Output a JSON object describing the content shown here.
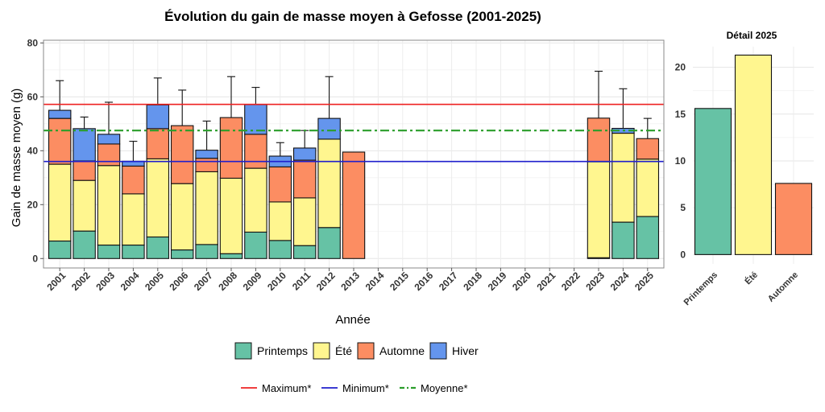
{
  "colors": {
    "Printemps": "#66c2a5",
    "Été": "#fff68f",
    "Automne": "#fc8d62",
    "Hiver": "#6495ed",
    "maximum": "#ee2222",
    "minimum": "#1f1fcc",
    "moyenne": "#2a9d2a"
  },
  "chart_data": [
    {
      "type": "bar",
      "stacked": true,
      "title": "Évolution du gain de masse moyen à Gefosse (2001-2025)",
      "xlabel": "Année",
      "ylabel": "Gain de masse moyen (g)",
      "ylim": [
        -3.5,
        81
      ],
      "yticks": [
        0,
        20,
        40,
        60,
        80
      ],
      "grid": true,
      "categories": [
        "2001",
        "2002",
        "2003",
        "2004",
        "2005",
        "2006",
        "2007",
        "2008",
        "2009",
        "2010",
        "2011",
        "2012",
        "2013",
        "2014",
        "2015",
        "2016",
        "2017",
        "2018",
        "2019",
        "2020",
        "2021",
        "2022",
        "2023",
        "2024",
        "2025"
      ],
      "series": [
        {
          "name": "Printemps",
          "values": [
            6.5,
            10.2,
            5,
            5,
            8,
            3.2,
            5.2,
            1.8,
            9.8,
            6.7,
            4.8,
            11.5,
            0,
            0,
            0,
            0,
            0,
            0,
            0,
            0,
            0,
            0,
            0.3,
            13.5,
            15.6
          ]
        },
        {
          "name": "Été",
          "values": [
            28.5,
            18.8,
            29.5,
            19,
            29,
            24.6,
            27,
            28,
            23.7,
            14.3,
            17.7,
            32.8,
            0,
            0,
            0,
            0,
            0,
            0,
            0,
            0,
            0,
            0,
            35.6,
            33,
            21.3
          ]
        },
        {
          "name": "Automne",
          "values": [
            17,
            7.2,
            8,
            10.3,
            11.2,
            21.5,
            5,
            22.5,
            12.6,
            13,
            14,
            0,
            39.5,
            0,
            0,
            0,
            0,
            0,
            0,
            0,
            0,
            0,
            16.2,
            0,
            7.6
          ]
        },
        {
          "name": "Hiver",
          "values": [
            3,
            12,
            3.6,
            1.8,
            8.8,
            0,
            3,
            0,
            11,
            4,
            4.5,
            7.7,
            0,
            0,
            0,
            0,
            0,
            0,
            0,
            0,
            0,
            0,
            0,
            1.8,
            0
          ]
        }
      ],
      "error_bar_top": [
        66,
        52.5,
        58,
        43.5,
        67,
        62.5,
        51,
        67.5,
        63.5,
        43,
        47.5,
        67.5,
        null,
        null,
        null,
        null,
        null,
        null,
        null,
        null,
        null,
        null,
        69.5,
        63,
        52
      ],
      "reference_lines": [
        {
          "name": "Maximum*",
          "value": 57.2,
          "style": "solid",
          "color": "#ee2222"
        },
        {
          "name": "Minimum*",
          "value": 36,
          "style": "solid",
          "color": "#1f1fcc"
        },
        {
          "name": "Moyenne*",
          "value": 47.5,
          "style": "dashdot",
          "color": "#2a9d2a"
        }
      ],
      "legend": {
        "placement": "bottom",
        "season_entries": [
          "Printemps",
          "Été",
          "Automne",
          "Hiver"
        ],
        "line_entries": [
          "Maximum*",
          "Minimum*",
          "Moyenne*"
        ]
      }
    },
    {
      "type": "bar",
      "title": "Détail 2025",
      "categories": [
        "Printemps",
        "Été",
        "Automne"
      ],
      "values": [
        15.6,
        21.3,
        7.6
      ],
      "ylim": [
        -1,
        22.2
      ],
      "yticks": [
        0,
        5,
        10,
        15,
        20
      ],
      "grid": true
    }
  ]
}
